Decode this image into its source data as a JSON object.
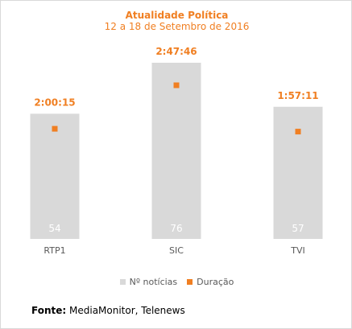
{
  "colors": {
    "bar": "#d9d9d9",
    "marker": "#f07f22",
    "accent": "#f07f22",
    "bar_label": "#ffffff",
    "axis_label": "#595959"
  },
  "source": {
    "label": "Fonte:",
    "text": "MediaMonitor, Telenews"
  },
  "chart_data": {
    "type": "bar",
    "title": "Atualidade Política",
    "subtitle": "12 a 18 de Setembro de 2016",
    "categories": [
      "RTP1",
      "SIC",
      "TVI"
    ],
    "series": [
      {
        "name": "Nº notícias",
        "type": "bar",
        "values": [
          54,
          76,
          57
        ],
        "labels": [
          "54",
          "76",
          "57"
        ]
      },
      {
        "name": "Duração",
        "type": "scatter",
        "values": [
          "2:00:15",
          "2:47:46",
          "1:57:11"
        ],
        "values_seconds": [
          7215,
          10066,
          7031
        ],
        "labels": [
          "2:00:15",
          "2:47:46",
          "1:57:11"
        ]
      }
    ],
    "legend_position": "bottom",
    "grid": false,
    "xlabel": "",
    "ylabel": ""
  }
}
